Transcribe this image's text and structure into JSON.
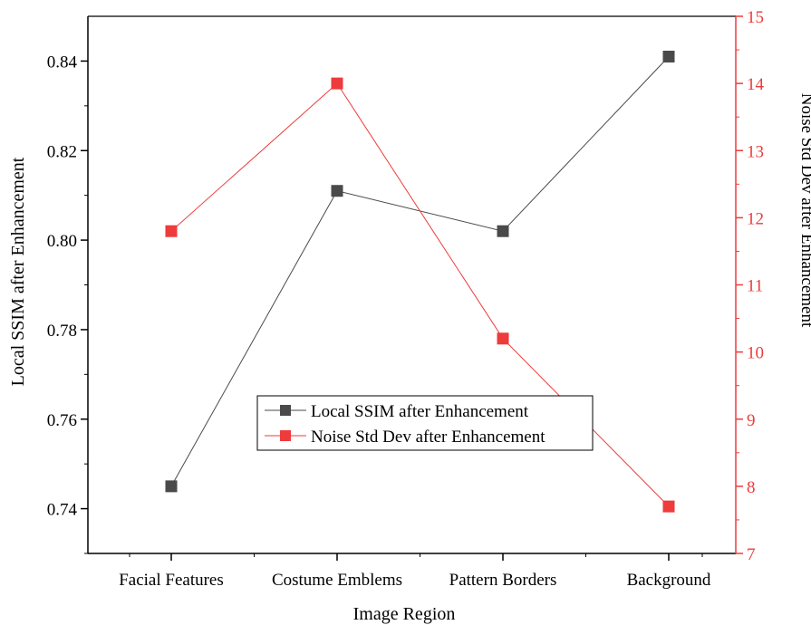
{
  "chart_data": {
    "type": "line",
    "title": "",
    "xlabel": "Image Region",
    "ylabel": "Local SSIM after Enhancement",
    "y2label": "Noise Std Dev after Enhancement",
    "categories": [
      "Facial Features",
      "Costume Emblems",
      "Pattern Borders",
      "Background"
    ],
    "ylim": [
      0.73,
      0.85
    ],
    "y_ticks": [
      0.74,
      0.76,
      0.78,
      0.8,
      0.82,
      0.84
    ],
    "y_tick_labels": [
      "0.74",
      "0.76",
      "0.78",
      "0.80",
      "0.82",
      "0.84"
    ],
    "y2lim": [
      7,
      15
    ],
    "y2_ticks": [
      7,
      8,
      9,
      10,
      11,
      12,
      13,
      14,
      15
    ],
    "y2_tick_labels": [
      "7",
      "8",
      "9",
      "10",
      "11",
      "12",
      "13",
      "14",
      "15"
    ],
    "grid": false,
    "legend_position": "bottom-center",
    "series": [
      {
        "name": "Local SSIM after Enhancement",
        "axis": "left",
        "color": "#4a4a4a",
        "marker": "square",
        "values": [
          0.745,
          0.811,
          0.802,
          0.841
        ]
      },
      {
        "name": "Noise Std Dev after Enhancement",
        "axis": "right",
        "color": "#ee3b3b",
        "marker": "square",
        "values": [
          11.8,
          14.0,
          10.2,
          7.7
        ]
      }
    ]
  },
  "colors": {
    "left_axis": "#000000",
    "right_axis": "#ee3b3b"
  }
}
